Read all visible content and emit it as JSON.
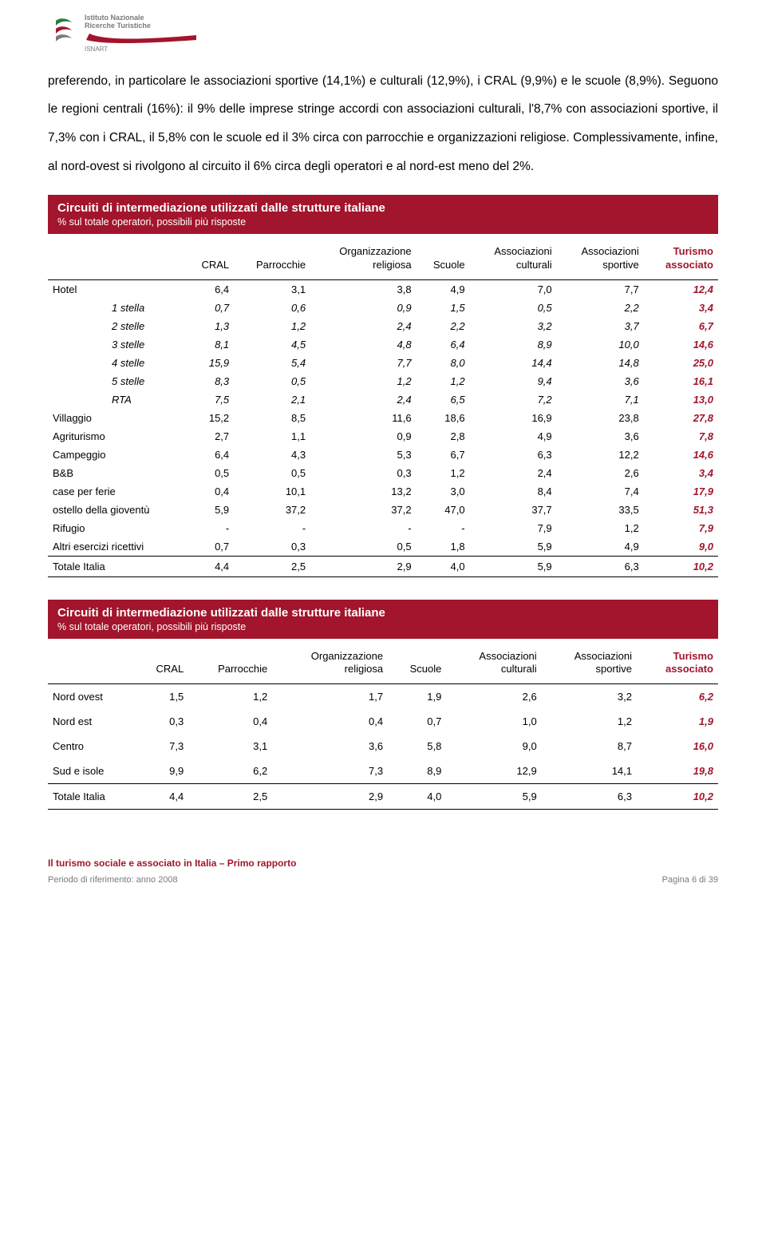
{
  "logo": {
    "line1": "Istituto Nazionale",
    "line2": "Ricerche Turistiche",
    "sub": "ISNART"
  },
  "paragraph": "preferendo, in particolare le associazioni sportive (14,1%) e culturali (12,9%), i CRAL (9,9%) e le scuole (8,9%). Seguono le regioni centrali (16%): il 9% delle imprese stringe accordi con associazioni culturali, l'8,7% con associazioni sportive, il 7,3% con i CRAL, il 5,8% con le scuole ed il 3% circa con parrocchie e organizzazioni religiose. Complessivamente, infine, al nord-ovest si rivolgono al circuito il 6% circa degli operatori e al nord-est meno del 2%.",
  "table1": {
    "title": "Circuiti di intermediazione utilizzati dalle strutture italiane",
    "subtitle": "% sul totale operatori, possibili più risposte",
    "columns": [
      "",
      "CRAL",
      "Parrocchie",
      "Organizzazione religiosa",
      "Scuole",
      "Associazioni culturali",
      "Associazioni sportive",
      "Turismo associato"
    ],
    "rows": [
      {
        "label": "Hotel",
        "indent": false,
        "v": [
          "6,4",
          "3,1",
          "3,8",
          "4,9",
          "7,0",
          "7,7",
          "12,4"
        ]
      },
      {
        "label": "1 stella",
        "indent": true,
        "v": [
          "0,7",
          "0,6",
          "0,9",
          "1,5",
          "0,5",
          "2,2",
          "3,4"
        ]
      },
      {
        "label": "2 stelle",
        "indent": true,
        "v": [
          "1,3",
          "1,2",
          "2,4",
          "2,2",
          "3,2",
          "3,7",
          "6,7"
        ]
      },
      {
        "label": "3 stelle",
        "indent": true,
        "v": [
          "8,1",
          "4,5",
          "4,8",
          "6,4",
          "8,9",
          "10,0",
          "14,6"
        ]
      },
      {
        "label": "4 stelle",
        "indent": true,
        "v": [
          "15,9",
          "5,4",
          "7,7",
          "8,0",
          "14,4",
          "14,8",
          "25,0"
        ]
      },
      {
        "label": "5 stelle",
        "indent": true,
        "v": [
          "8,3",
          "0,5",
          "1,2",
          "1,2",
          "9,4",
          "3,6",
          "16,1"
        ]
      },
      {
        "label": "RTA",
        "indent": true,
        "v": [
          "7,5",
          "2,1",
          "2,4",
          "6,5",
          "7,2",
          "7,1",
          "13,0"
        ]
      },
      {
        "label": "Villaggio",
        "indent": false,
        "v": [
          "15,2",
          "8,5",
          "11,6",
          "18,6",
          "16,9",
          "23,8",
          "27,8"
        ]
      },
      {
        "label": "Agriturismo",
        "indent": false,
        "v": [
          "2,7",
          "1,1",
          "0,9",
          "2,8",
          "4,9",
          "3,6",
          "7,8"
        ]
      },
      {
        "label": "Campeggio",
        "indent": false,
        "v": [
          "6,4",
          "4,3",
          "5,3",
          "6,7",
          "6,3",
          "12,2",
          "14,6"
        ]
      },
      {
        "label": "B&B",
        "indent": false,
        "v": [
          "0,5",
          "0,5",
          "0,3",
          "1,2",
          "2,4",
          "2,6",
          "3,4"
        ]
      },
      {
        "label": "case per ferie",
        "indent": false,
        "v": [
          "0,4",
          "10,1",
          "13,2",
          "3,0",
          "8,4",
          "7,4",
          "17,9"
        ]
      },
      {
        "label": "ostello della gioventù",
        "indent": false,
        "v": [
          "5,9",
          "37,2",
          "37,2",
          "47,0",
          "37,7",
          "33,5",
          "51,3"
        ]
      },
      {
        "label": "Rifugio",
        "indent": false,
        "v": [
          "-",
          "-",
          "-",
          "-",
          "7,9",
          "1,2",
          "7,9"
        ]
      },
      {
        "label": "Altri esercizi ricettivi",
        "indent": false,
        "v": [
          "0,7",
          "0,3",
          "0,5",
          "1,8",
          "5,9",
          "4,9",
          "9,0"
        ]
      },
      {
        "label": "Totale Italia",
        "indent": false,
        "total": true,
        "v": [
          "4,4",
          "2,5",
          "2,9",
          "4,0",
          "5,9",
          "6,3",
          "10,2"
        ]
      }
    ]
  },
  "table2": {
    "title": "Circuiti di intermediazione utilizzati dalle strutture italiane",
    "subtitle": "% sul totale operatori, possibili più risposte",
    "columns": [
      "",
      "CRAL",
      "Parrocchie",
      "Organizzazione religiosa",
      "Scuole",
      "Associazioni culturali",
      "Associazioni sportive",
      "Turismo associato"
    ],
    "rows": [
      {
        "label": "Nord ovest",
        "indent": false,
        "v": [
          "1,5",
          "1,2",
          "1,7",
          "1,9",
          "2,6",
          "3,2",
          "6,2"
        ]
      },
      {
        "label": "Nord est",
        "indent": false,
        "v": [
          "0,3",
          "0,4",
          "0,4",
          "0,7",
          "1,0",
          "1,2",
          "1,9"
        ]
      },
      {
        "label": "Centro",
        "indent": false,
        "v": [
          "7,3",
          "3,1",
          "3,6",
          "5,8",
          "9,0",
          "8,7",
          "16,0"
        ]
      },
      {
        "label": "Sud e isole",
        "indent": false,
        "v": [
          "9,9",
          "6,2",
          "7,3",
          "8,9",
          "12,9",
          "14,1",
          "19,8"
        ]
      },
      {
        "label": "Totale Italia",
        "indent": false,
        "total": true,
        "v": [
          "4,4",
          "2,5",
          "2,9",
          "4,0",
          "5,9",
          "6,3",
          "10,2"
        ]
      }
    ]
  },
  "footer": {
    "report_title": "Il turismo sociale e associato in Italia – Primo rapporto",
    "period": "Periodo di riferimento: anno 2008",
    "page": "Pagina 6 di 39"
  },
  "colors": {
    "accent": "#a2152c",
    "grey": "#7a7a7a",
    "green": "#2f7a3a"
  }
}
